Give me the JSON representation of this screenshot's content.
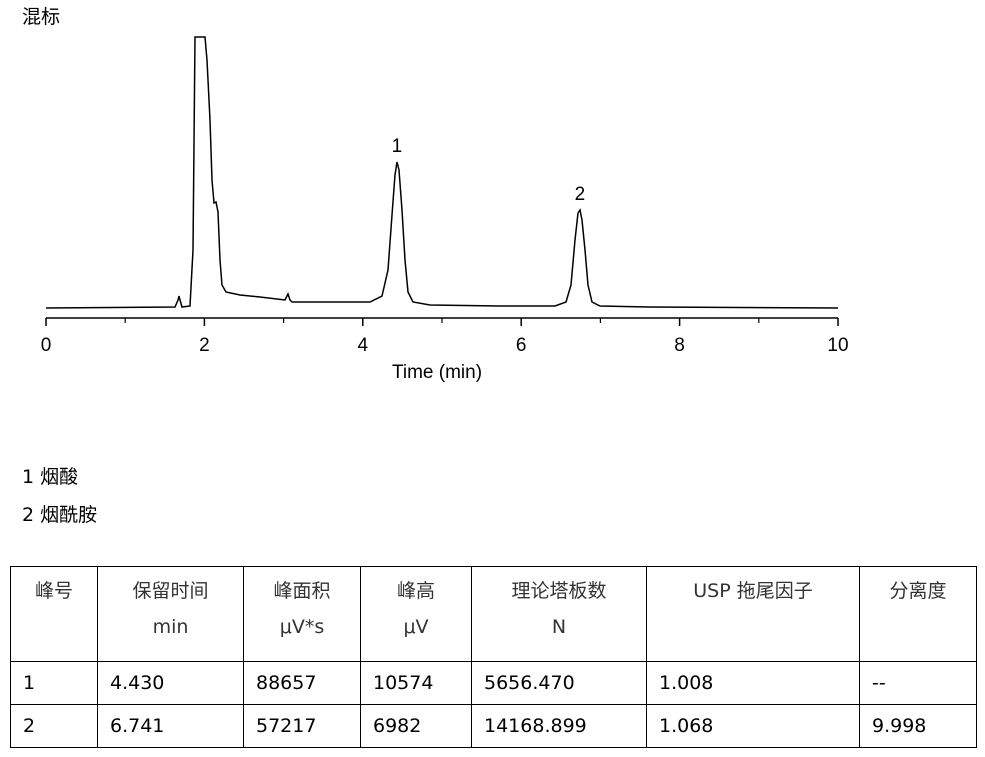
{
  "header": {
    "title": "混标"
  },
  "chart_data": {
    "type": "line",
    "xlabel": "Time (min)",
    "xlim": [
      0,
      10
    ],
    "xticks": [
      0,
      2,
      4,
      6,
      8,
      10
    ],
    "minor_xticks": [
      1,
      3,
      5,
      7,
      9
    ],
    "annotations": [
      {
        "text": "1",
        "x": 4.43
      },
      {
        "text": "2",
        "x": 6.741
      }
    ]
  },
  "legend": [
    "1 烟酸",
    "2  烟酰胺"
  ],
  "table": {
    "header": [
      [
        "峰号"
      ],
      [
        "保留时间",
        "min"
      ],
      [
        "峰面积",
        "μV*s"
      ],
      [
        "峰高",
        "μV"
      ],
      [
        "理论塔板数",
        "N"
      ],
      [
        "USP 拖尾因子"
      ],
      [
        "分离度"
      ]
    ],
    "rows": [
      [
        "1",
        "4.430",
        "88657",
        "10574",
        "5656.470",
        "1.008",
        "--"
      ],
      [
        "2",
        "6.741",
        "57217",
        "6982",
        "14168.899",
        "1.068",
        "9.998"
      ]
    ]
  }
}
